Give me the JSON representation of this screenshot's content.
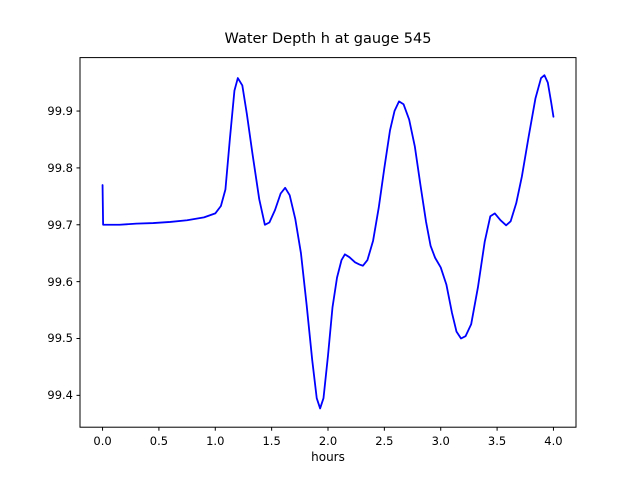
{
  "chart_data": {
    "type": "line",
    "title": "Water Depth h at gauge 545",
    "xlabel": "hours",
    "ylabel": "",
    "xlim": [
      -0.2,
      4.2
    ],
    "ylim": [
      99.344,
      99.994
    ],
    "grid": false,
    "legend": "none",
    "x_ticks": {
      "values": [
        0.0,
        0.5,
        1.0,
        1.5,
        2.0,
        2.5,
        3.0,
        3.5,
        4.0
      ],
      "labels": [
        "0.0",
        "0.5",
        "1.0",
        "1.5",
        "2.0",
        "2.5",
        "3.0",
        "3.5",
        "4.0"
      ]
    },
    "y_ticks": {
      "values": [
        99.4,
        99.5,
        99.6,
        99.7,
        99.8,
        99.9
      ],
      "labels": [
        "99.4",
        "99.5",
        "99.6",
        "99.7",
        "99.8",
        "99.9"
      ]
    },
    "series": [
      {
        "name": "water-depth",
        "color": "#0000ff",
        "points": [
          [
            0.0,
            99.77
          ],
          [
            0.005,
            99.7
          ],
          [
            0.05,
            99.7
          ],
          [
            0.15,
            99.7
          ],
          [
            0.3,
            99.702
          ],
          [
            0.45,
            99.703
          ],
          [
            0.6,
            99.705
          ],
          [
            0.75,
            99.708
          ],
          [
            0.9,
            99.713
          ],
          [
            1.0,
            99.72
          ],
          [
            1.05,
            99.733
          ],
          [
            1.09,
            99.762
          ],
          [
            1.13,
            99.852
          ],
          [
            1.17,
            99.936
          ],
          [
            1.2,
            99.958
          ],
          [
            1.24,
            99.945
          ],
          [
            1.28,
            99.895
          ],
          [
            1.33,
            99.825
          ],
          [
            1.39,
            99.745
          ],
          [
            1.44,
            99.7
          ],
          [
            1.48,
            99.704
          ],
          [
            1.53,
            99.726
          ],
          [
            1.58,
            99.755
          ],
          [
            1.62,
            99.765
          ],
          [
            1.66,
            99.752
          ],
          [
            1.71,
            99.71
          ],
          [
            1.76,
            99.65
          ],
          [
            1.81,
            99.56
          ],
          [
            1.86,
            99.462
          ],
          [
            1.9,
            99.395
          ],
          [
            1.93,
            99.377
          ],
          [
            1.96,
            99.395
          ],
          [
            2.0,
            99.47
          ],
          [
            2.04,
            99.555
          ],
          [
            2.08,
            99.607
          ],
          [
            2.12,
            99.638
          ],
          [
            2.15,
            99.648
          ],
          [
            2.19,
            99.643
          ],
          [
            2.24,
            99.634
          ],
          [
            2.28,
            99.63
          ],
          [
            2.31,
            99.628
          ],
          [
            2.35,
            99.638
          ],
          [
            2.4,
            99.672
          ],
          [
            2.45,
            99.73
          ],
          [
            2.5,
            99.8
          ],
          [
            2.55,
            99.866
          ],
          [
            2.59,
            99.9
          ],
          [
            2.63,
            99.917
          ],
          [
            2.67,
            99.912
          ],
          [
            2.72,
            99.885
          ],
          [
            2.77,
            99.838
          ],
          [
            2.82,
            99.77
          ],
          [
            2.87,
            99.705
          ],
          [
            2.91,
            99.663
          ],
          [
            2.95,
            99.642
          ],
          [
            3.0,
            99.625
          ],
          [
            3.05,
            99.595
          ],
          [
            3.1,
            99.545
          ],
          [
            3.14,
            99.512
          ],
          [
            3.18,
            99.5
          ],
          [
            3.22,
            99.504
          ],
          [
            3.27,
            99.525
          ],
          [
            3.33,
            99.59
          ],
          [
            3.39,
            99.67
          ],
          [
            3.44,
            99.715
          ],
          [
            3.48,
            99.72
          ],
          [
            3.53,
            99.708
          ],
          [
            3.58,
            99.699
          ],
          [
            3.62,
            99.706
          ],
          [
            3.67,
            99.738
          ],
          [
            3.72,
            99.785
          ],
          [
            3.78,
            99.855
          ],
          [
            3.84,
            99.922
          ],
          [
            3.89,
            99.958
          ],
          [
            3.92,
            99.963
          ],
          [
            3.95,
            99.95
          ],
          [
            3.98,
            99.915
          ],
          [
            4.0,
            99.89
          ]
        ]
      }
    ],
    "colors": {
      "line": "#0000ff",
      "axis": "#000000",
      "text": "#000000",
      "background": "#ffffff"
    }
  }
}
